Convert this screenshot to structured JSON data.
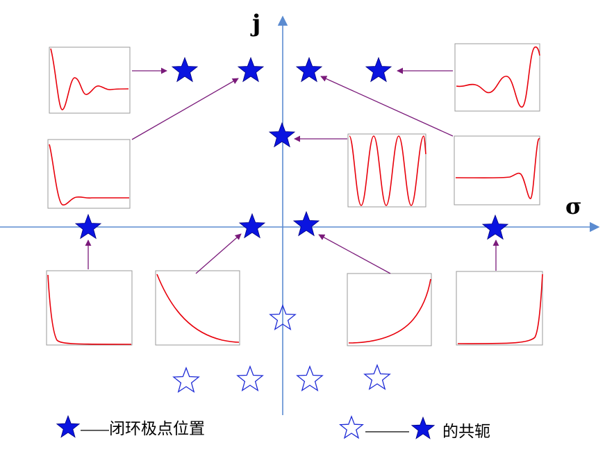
{
  "labels": {
    "imag_axis": "j",
    "real_axis": "σ"
  },
  "legend": {
    "closed_loop_pole": "闭环极点位置",
    "conjugate": "的共轭"
  },
  "colors": {
    "axis": "#5b8bd0",
    "star_fill": "#0a14e0",
    "star_outline": "#1e2bd6",
    "arrow": "#7a1a7a",
    "curve": "#e8000b",
    "plot_frame": "#9a9a9a"
  },
  "thumbnails": [
    {
      "name": "plot-underdamped-fast",
      "response": "damped-oscillation"
    },
    {
      "name": "plot-growing-oscillation",
      "response": "growing-oscillation"
    },
    {
      "name": "plot-underdamped-settling",
      "response": "damped-settling"
    },
    {
      "name": "plot-sustained-oscillation",
      "response": "sustained-oscillation"
    },
    {
      "name": "plot-growing-oscillation-slow",
      "response": "growing-oscillation-slow"
    },
    {
      "name": "plot-fast-decay",
      "response": "fast-exponential-decay"
    },
    {
      "name": "plot-slow-decay",
      "response": "slow-exponential-decay"
    },
    {
      "name": "plot-slow-growth",
      "response": "slow-exponential-growth"
    },
    {
      "name": "plot-fast-growth",
      "response": "fast-exponential-growth"
    }
  ]
}
